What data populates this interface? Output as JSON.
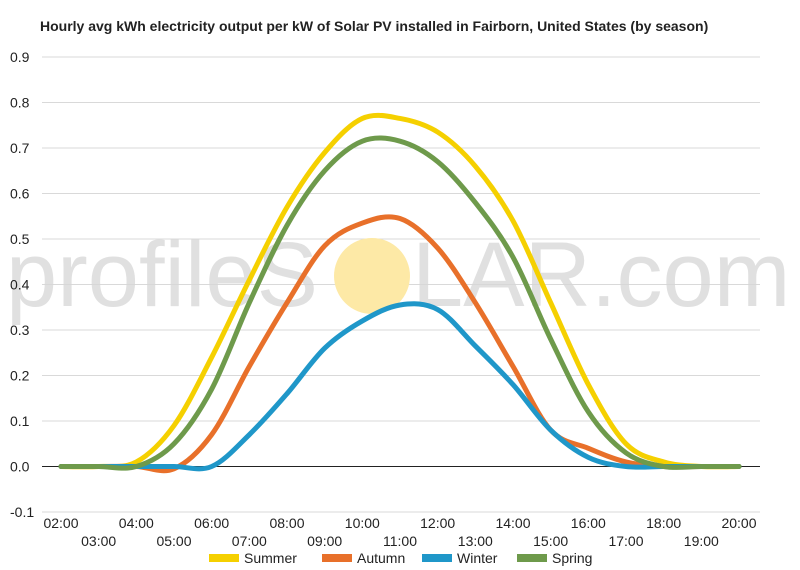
{
  "chart_data": {
    "type": "line",
    "title": "Hourly avg kWh electricity output per kW of Solar PV installed in Fairborn, United States (by season)",
    "xlabel": "",
    "ylabel": "",
    "ylim": [
      -0.1,
      0.9
    ],
    "yticks": [
      "-0.1",
      "0.0",
      "0.1",
      "0.2",
      "0.3",
      "0.4",
      "0.5",
      "0.6",
      "0.7",
      "0.8",
      "0.9"
    ],
    "x": [
      "02:00",
      "03:00",
      "04:00",
      "05:00",
      "06:00",
      "07:00",
      "08:00",
      "09:00",
      "10:00",
      "11:00",
      "12:00",
      "13:00",
      "14:00",
      "15:00",
      "16:00",
      "17:00",
      "18:00",
      "19:00",
      "20:00"
    ],
    "grid": true,
    "legend_position": "bottom",
    "series": [
      {
        "name": "Summer",
        "color": "#f5d000",
        "values": [
          0.0,
          0.0,
          0.01,
          0.09,
          0.24,
          0.41,
          0.57,
          0.69,
          0.765,
          0.765,
          0.735,
          0.66,
          0.54,
          0.36,
          0.18,
          0.05,
          0.01,
          0.0,
          0.0
        ]
      },
      {
        "name": "Autumn",
        "color": "#e8702a",
        "values": [
          0.0,
          0.0,
          0.0,
          -0.005,
          0.07,
          0.22,
          0.36,
          0.485,
          0.535,
          0.545,
          0.48,
          0.36,
          0.22,
          0.08,
          0.04,
          0.01,
          0.0,
          0.0,
          0.0
        ]
      },
      {
        "name": "Winter",
        "color": "#1f97c9",
        "values": [
          0.0,
          0.0,
          0.0,
          0.0,
          0.0,
          0.07,
          0.16,
          0.26,
          0.32,
          0.355,
          0.345,
          0.265,
          0.18,
          0.08,
          0.02,
          0.0,
          0.0,
          0.0,
          0.0
        ]
      },
      {
        "name": "Spring",
        "color": "#6e9a4b",
        "values": [
          0.0,
          0.0,
          0.0,
          0.05,
          0.17,
          0.36,
          0.53,
          0.65,
          0.715,
          0.715,
          0.67,
          0.58,
          0.46,
          0.28,
          0.12,
          0.03,
          0.0,
          0.0,
          0.0
        ]
      }
    ]
  },
  "watermark": {
    "text_left": "profileS",
    "text_right": "LAR.com"
  },
  "colors": {
    "grid": "#d9d9d9",
    "zero_line": "#222222",
    "sun": "#fde9a6"
  }
}
